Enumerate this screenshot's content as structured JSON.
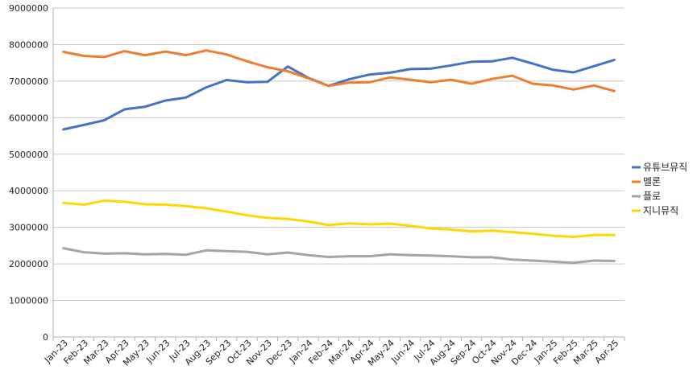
{
  "chart_data": {
    "type": "line",
    "title": "",
    "xlabel": "",
    "ylabel": "",
    "ylim": [
      0,
      9000000
    ],
    "y_ticks": [
      "0",
      "1000000",
      "2000000",
      "3000000",
      "4000000",
      "5000000",
      "6000000",
      "7000000",
      "8000000",
      "9000000"
    ],
    "grid": "horizontal",
    "legend_position": "right",
    "categories": [
      "Jan-23",
      "Feb-23",
      "Mar-23",
      "Apr-23",
      "May-23",
      "Jun-23",
      "Jul-23",
      "Aug-23",
      "Sep-23",
      "Oct-23",
      "Nov-23",
      "Dec-23",
      "Jan-24",
      "Feb-24",
      "Mar-24",
      "Apr-24",
      "May-24",
      "Jun-24",
      "Jul-24",
      "Aug-24",
      "Sep-24",
      "Oct-24",
      "Nov-24",
      "Dec-24",
      "Jan-25",
      "Feb-25",
      "Mar-25",
      "Apr-25"
    ],
    "series": [
      {
        "name": "유튜브뮤직",
        "color": "#4472C4",
        "values": [
          5680000,
          5800000,
          5930000,
          6230000,
          6300000,
          6470000,
          6550000,
          6830000,
          7030000,
          6970000,
          6980000,
          7400000,
          7090000,
          6870000,
          7050000,
          7180000,
          7230000,
          7330000,
          7340000,
          7430000,
          7530000,
          7540000,
          7640000,
          7480000,
          7310000,
          7240000,
          7410000,
          7580000
        ]
      },
      {
        "name": "멜론",
        "color": "#ED7D31",
        "values": [
          7800000,
          7690000,
          7660000,
          7820000,
          7710000,
          7810000,
          7710000,
          7840000,
          7730000,
          7540000,
          7380000,
          7270000,
          7080000,
          6870000,
          6960000,
          6970000,
          7100000,
          7040000,
          6970000,
          7040000,
          6930000,
          7060000,
          7150000,
          6930000,
          6880000,
          6770000,
          6880000,
          6730000
        ]
      },
      {
        "name": "플로",
        "color": "#A5A5A5",
        "values": [
          2430000,
          2320000,
          2280000,
          2290000,
          2260000,
          2270000,
          2250000,
          2370000,
          2350000,
          2330000,
          2260000,
          2310000,
          2240000,
          2190000,
          2210000,
          2210000,
          2260000,
          2240000,
          2230000,
          2210000,
          2180000,
          2180000,
          2120000,
          2090000,
          2060000,
          2030000,
          2090000,
          2080000
        ]
      },
      {
        "name": "지니뮤직",
        "color": "#FFD700",
        "values": [
          3670000,
          3620000,
          3730000,
          3700000,
          3630000,
          3620000,
          3580000,
          3520000,
          3430000,
          3330000,
          3260000,
          3230000,
          3160000,
          3060000,
          3110000,
          3080000,
          3100000,
          3040000,
          2970000,
          2940000,
          2890000,
          2910000,
          2870000,
          2820000,
          2770000,
          2740000,
          2790000,
          2790000
        ]
      }
    ]
  }
}
